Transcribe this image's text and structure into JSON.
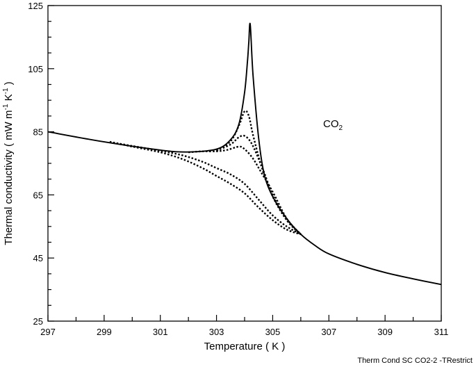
{
  "chart_data": {
    "type": "line",
    "title": "",
    "xlabel": "Temperature ( K )",
    "ylabel_main": "Thermal conductivity (  mW m",
    "ylabel_sup1": "-1",
    "ylabel_mid": " K",
    "ylabel_sup2": "-1",
    "ylabel_end": " )",
    "xlim": [
      297,
      311
    ],
    "ylim": [
      25,
      125
    ],
    "x_ticks": [
      "297",
      "299",
      "301",
      "303",
      "305",
      "307",
      "309",
      "311"
    ],
    "y_ticks": [
      "25",
      "45",
      "65",
      "85",
      "105",
      "125"
    ],
    "annotation": {
      "text": "CO",
      "subscript": "2"
    },
    "footer": "Therm Cond SC CO2-2 -TRestrict",
    "grid": false,
    "series": [
      {
        "style": "solid",
        "x": [
          297,
          299,
          301,
          302,
          303,
          303.5,
          303.8,
          304.0,
          304.1,
          304.15,
          304.2,
          304.3,
          304.5,
          304.7,
          305.0,
          305.5,
          306.0,
          306.5,
          307,
          308,
          309,
          310,
          311
        ],
        "y": [
          85,
          81.8,
          79.2,
          78.6,
          79.5,
          82.5,
          87.5,
          97.5,
          107,
          113.5,
          119,
          103,
          83,
          71.5,
          64.5,
          57.5,
          52.5,
          49,
          46.3,
          43,
          40.4,
          38.4,
          36.6
        ]
      },
      {
        "style": "dotted",
        "x": [
          303.0,
          303.5,
          303.8,
          304.0,
          304.15,
          304.3,
          304.6,
          305.0,
          305.5,
          306.0
        ],
        "y": [
          79,
          82,
          87,
          91.5,
          90,
          84,
          74,
          64.5,
          57,
          52.5
        ]
      },
      {
        "style": "dotted",
        "x": [
          303.0,
          303.5,
          303.8,
          304.0,
          304.2,
          304.4,
          304.7,
          305.0,
          305.5,
          306.0
        ],
        "y": [
          79,
          81,
          83.3,
          83.7,
          82,
          78.5,
          72,
          65,
          57,
          52.5
        ]
      },
      {
        "style": "dotted",
        "x": [
          302.0,
          302.5,
          303.0,
          303.4,
          303.8,
          304.0,
          304.3,
          304.6,
          305.0,
          305.5,
          306.0
        ],
        "y": [
          78.5,
          78.8,
          78.8,
          79.3,
          80.3,
          79.5,
          76.5,
          72,
          66,
          57.5,
          52.5
        ]
      },
      {
        "style": "dotted",
        "x": [
          299.2,
          300.0,
          301.0,
          301.8,
          302.5,
          303.0,
          303.5,
          304.0,
          304.5,
          305.0,
          305.5,
          306.0
        ],
        "y": [
          81.8,
          80.5,
          79.0,
          77.5,
          75.5,
          73.5,
          71.5,
          68.5,
          63.5,
          58.5,
          55.0,
          52.5
        ]
      },
      {
        "style": "dotted",
        "x": [
          299.2,
          300.0,
          301.0,
          301.8,
          302.5,
          303.0,
          303.5,
          304.0,
          304.5,
          305.0,
          305.5,
          306.0
        ],
        "y": [
          81.8,
          80.3,
          78.5,
          76.3,
          73.5,
          71.0,
          68.5,
          65.5,
          61.0,
          57.0,
          54.0,
          52.5
        ]
      }
    ]
  }
}
